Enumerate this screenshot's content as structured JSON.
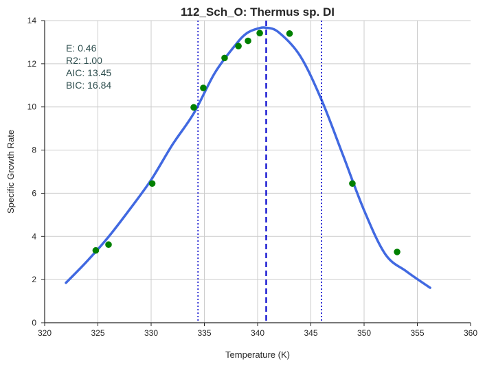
{
  "chart_data": {
    "type": "scatter",
    "title": "112_Sch_O: Thermus sp. DI",
    "xlabel": "Temperature (K)",
    "ylabel": "Specific Growth Rate",
    "xlim": [
      320,
      360
    ],
    "ylim": [
      0,
      14
    ],
    "x_ticks": [
      320,
      325,
      330,
      335,
      340,
      345,
      350,
      355,
      360
    ],
    "y_ticks": [
      0,
      2,
      4,
      6,
      8,
      10,
      12,
      14
    ],
    "grid": true,
    "annotations": [
      "E:  0.46",
      "R2:  1.00",
      "AIC: 13.45",
      "BIC: 16.84"
    ],
    "points": [
      {
        "x": 324.8,
        "y": 3.35
      },
      {
        "x": 326.0,
        "y": 3.62
      },
      {
        "x": 330.1,
        "y": 6.45
      },
      {
        "x": 334.0,
        "y": 9.98
      },
      {
        "x": 334.9,
        "y": 10.88
      },
      {
        "x": 336.9,
        "y": 12.27
      },
      {
        "x": 338.2,
        "y": 12.82
      },
      {
        "x": 339.1,
        "y": 13.06
      },
      {
        "x": 340.2,
        "y": 13.42
      },
      {
        "x": 343.0,
        "y": 13.4
      },
      {
        "x": 348.9,
        "y": 6.45
      },
      {
        "x": 353.1,
        "y": 3.28
      }
    ],
    "fit_curve": {
      "x": [
        322,
        324,
        326,
        328,
        330,
        332,
        334,
        336,
        338,
        339,
        340,
        340.8,
        342,
        344,
        346,
        348,
        350,
        352,
        354,
        356.2
      ],
      "y": [
        1.85,
        2.86,
        3.98,
        5.26,
        6.62,
        8.25,
        9.7,
        11.59,
        12.92,
        13.42,
        13.63,
        13.67,
        13.45,
        12.36,
        10.33,
        7.79,
        5.21,
        3.17,
        2.37,
        1.62
      ]
    },
    "vlines": [
      {
        "x": 340.8,
        "style": "dashed"
      },
      {
        "x": 334.4,
        "style": "dotted"
      },
      {
        "x": 346.0,
        "style": "dotted"
      }
    ],
    "colors": {
      "points": "#008000",
      "curve": "#4169e1",
      "vlines": "#0000cc",
      "grid": "#cccccc",
      "annotation": "#2f4f4f"
    }
  }
}
